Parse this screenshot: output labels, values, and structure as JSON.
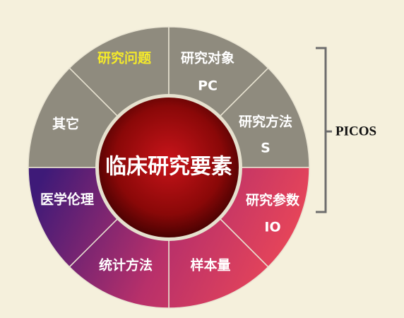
{
  "center": {
    "label": "临床研究要素"
  },
  "segments": [
    {
      "label": "研究问题",
      "sub": "",
      "highlight": true
    },
    {
      "label": "研究对象",
      "sub": "PC",
      "highlight": false
    },
    {
      "label": "研究方法",
      "sub": "S",
      "highlight": false
    },
    {
      "label": "研究参数",
      "sub": "IO",
      "highlight": false
    },
    {
      "label": "样本量",
      "sub": "",
      "highlight": false
    },
    {
      "label": "统计方法",
      "sub": "",
      "highlight": false
    },
    {
      "label": "医学伦理",
      "sub": "",
      "highlight": false
    },
    {
      "label": "其它",
      "sub": "",
      "highlight": false
    }
  ],
  "bracket": {
    "label": "PICOS"
  },
  "colors": {
    "background": "#f5f0dc",
    "upper_segment": "#8f8b7e",
    "highlight_text": "#f5ea2a",
    "lower_gradient_start": "#3e1a78",
    "lower_gradient_end": "#f24a55",
    "center_inner": "#b01010",
    "center_outer": "#5a0404",
    "bracket": "#6d6d6d"
  }
}
